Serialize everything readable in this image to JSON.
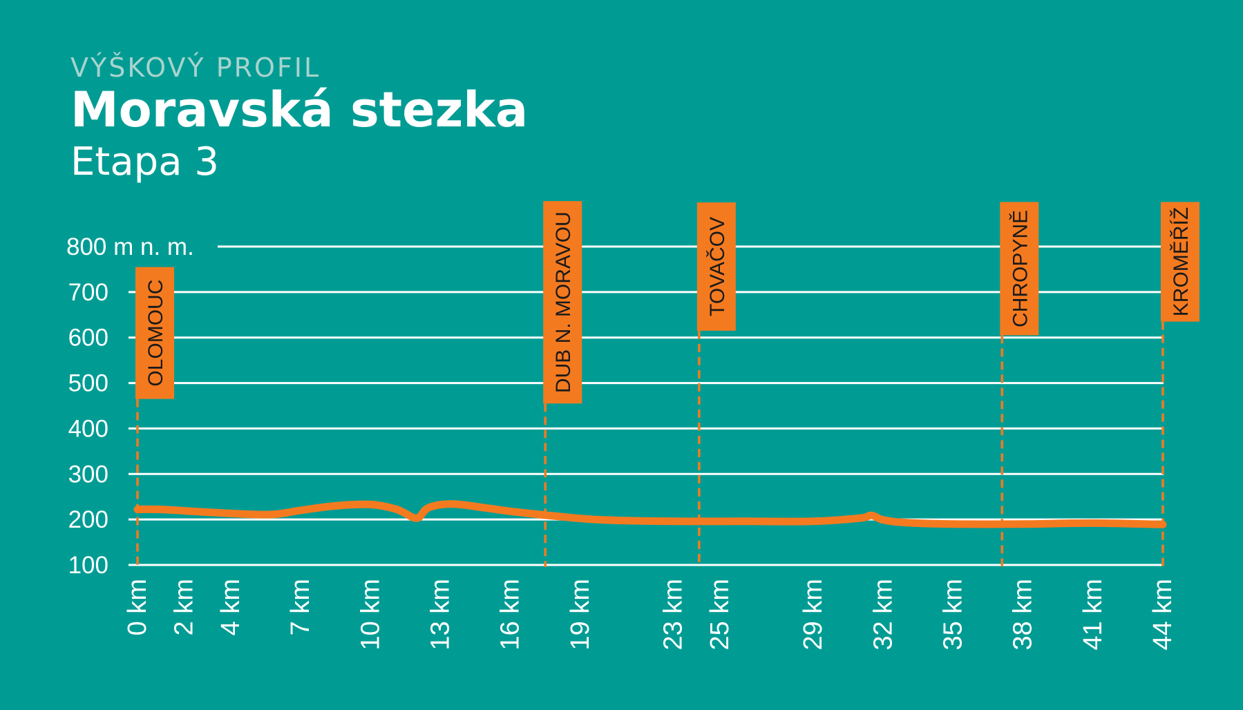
{
  "header": {
    "kicker": "VÝŠKOVÝ PROFIL",
    "title": "Moravská stezka",
    "subtitle": "Etapa 3"
  },
  "colors": {
    "background": "#009c94",
    "grid": "#ffffff",
    "line": "#f47a20",
    "marker": "#f47a20",
    "marker_text": "#1a1a1a"
  },
  "chart_data": {
    "type": "line",
    "title": "Moravská stezka",
    "subtitle": "Etapa 3",
    "xlabel": "",
    "ylabel": "",
    "y_unit_label": "800 m n. m.",
    "ylim": [
      100,
      800
    ],
    "yticks": [
      100,
      200,
      300,
      400,
      500,
      600,
      700,
      800
    ],
    "ytick_labels": [
      "100",
      "200",
      "300",
      "400",
      "500",
      "600",
      "700",
      "800 m n. m."
    ],
    "xticks": [
      0,
      2,
      4,
      7,
      10,
      13,
      16,
      19,
      23,
      25,
      29,
      32,
      35,
      38,
      41,
      44
    ],
    "xtick_labels": [
      "0 km",
      "2 km",
      "4 km",
      "7 km",
      "10 km",
      "13 km",
      "16 km",
      "19 km",
      "23 km",
      "25 km",
      "29 km",
      "32 km",
      "35 km",
      "38 km",
      "41 km",
      "44 km"
    ],
    "grid": true,
    "legend": "none",
    "series": [
      {
        "elevation_profile": [
          [
            0,
            222
          ],
          [
            1,
            222
          ],
          [
            3,
            216
          ],
          [
            5,
            211
          ],
          [
            6,
            212
          ],
          [
            7,
            220
          ],
          [
            8.5,
            230
          ],
          [
            10,
            233
          ],
          [
            11,
            224
          ],
          [
            11.4,
            216
          ],
          [
            12,
            203
          ],
          [
            12.5,
            226
          ],
          [
            13.5,
            234
          ],
          [
            15,
            225
          ],
          [
            16,
            218
          ],
          [
            18,
            207
          ],
          [
            20,
            199
          ],
          [
            23,
            196
          ],
          [
            26,
            196
          ],
          [
            29,
            196
          ],
          [
            31,
            203
          ],
          [
            31.5,
            209
          ],
          [
            32,
            199
          ],
          [
            33,
            193
          ],
          [
            35,
            190
          ],
          [
            38,
            190
          ],
          [
            41,
            192
          ],
          [
            44,
            189
          ]
        ]
      }
    ],
    "waypoints": [
      {
        "name": "OLOMOUC",
        "km": 0,
        "label_top": 755,
        "label_bottom": 465
      },
      {
        "name": "DUB N. MORAVOU",
        "km": 17.5,
        "label_top": 900,
        "label_bottom": 455
      },
      {
        "name": "TOVAČOV",
        "km": 24.1,
        "label_top": 897,
        "label_bottom": 615
      },
      {
        "name": "CHROPYNĚ",
        "km": 37.1,
        "label_top": 898,
        "label_bottom": 605
      },
      {
        "name": "KROMĚŘÍŽ",
        "km": 45.2,
        "label_top": 898,
        "label_bottom": 635
      }
    ]
  }
}
